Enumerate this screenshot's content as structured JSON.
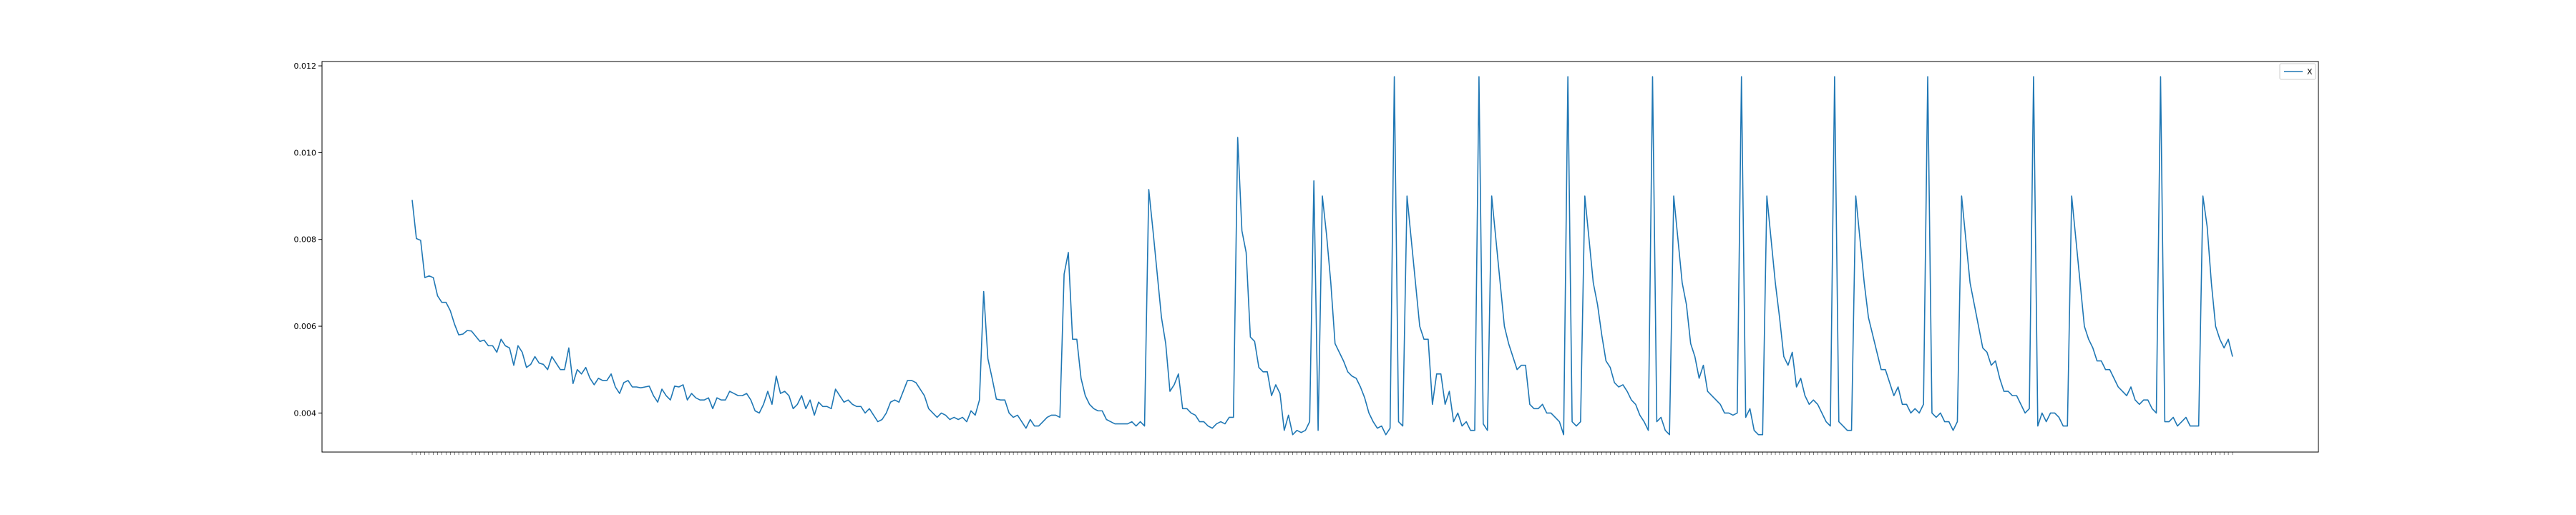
{
  "chart_data": {
    "type": "line",
    "title": "",
    "xlabel": "",
    "ylabel": "",
    "ylim": [
      0.0031,
      0.0121
    ],
    "y_ticks": [
      0.004,
      0.006,
      0.008,
      0.01,
      0.012
    ],
    "y_tick_labels": [
      "0.004",
      "0.006",
      "0.008",
      "0.010",
      "0.012"
    ],
    "grid": false,
    "legend_position": "top-right",
    "series": [
      {
        "name": "X",
        "color": "#1f77b4",
        "values": [
          0.00891,
          0.00802,
          0.00798,
          0.00712,
          0.00716,
          0.00712,
          0.0067,
          0.00655,
          0.00655,
          0.00636,
          0.00605,
          0.0058,
          0.00582,
          0.0059,
          0.00589,
          0.00577,
          0.00565,
          0.00568,
          0.00555,
          0.00555,
          0.0054,
          0.0057,
          0.00555,
          0.0055,
          0.0051,
          0.00555,
          0.0054,
          0.00505,
          0.00512,
          0.0053,
          0.00515,
          0.00512,
          0.005,
          0.0053,
          0.00515,
          0.005,
          0.005,
          0.0055,
          0.00468,
          0.005,
          0.0049,
          0.00505,
          0.0048,
          0.00465,
          0.0048,
          0.00475,
          0.00475,
          0.0049,
          0.0046,
          0.00445,
          0.0047,
          0.00475,
          0.0046,
          0.0046,
          0.00458,
          0.0046,
          0.00462,
          0.0044,
          0.00425,
          0.00455,
          0.0044,
          0.0043,
          0.00462,
          0.0046,
          0.00465,
          0.0043,
          0.00445,
          0.00435,
          0.0043,
          0.0043,
          0.00435,
          0.0041,
          0.00435,
          0.0043,
          0.0043,
          0.0045,
          0.00445,
          0.0044,
          0.0044,
          0.00445,
          0.0043,
          0.00405,
          0.004,
          0.0042,
          0.0045,
          0.0042,
          0.00485,
          0.00445,
          0.0045,
          0.0044,
          0.0041,
          0.0042,
          0.0044,
          0.0041,
          0.0043,
          0.00395,
          0.00425,
          0.00415,
          0.00415,
          0.0041,
          0.00455,
          0.0044,
          0.00425,
          0.0043,
          0.0042,
          0.00415,
          0.00415,
          0.004,
          0.0041,
          0.00395,
          0.0038,
          0.00385,
          0.004,
          0.00425,
          0.0043,
          0.00425,
          0.0045,
          0.00475,
          0.00475,
          0.0047,
          0.00455,
          0.0044,
          0.0041,
          0.004,
          0.0039,
          0.004,
          0.00395,
          0.00385,
          0.0039,
          0.00385,
          0.0039,
          0.0038,
          0.00405,
          0.00395,
          0.0043,
          0.0068,
          0.00525,
          0.0048,
          0.00432,
          0.0043,
          0.0043,
          0.004,
          0.0039,
          0.00395,
          0.0038,
          0.00365,
          0.00385,
          0.0037,
          0.0037,
          0.0038,
          0.0039,
          0.00395,
          0.00395,
          0.0039,
          0.0072,
          0.0077,
          0.0057,
          0.0057,
          0.0048,
          0.0044,
          0.0042,
          0.0041,
          0.00405,
          0.00405,
          0.00385,
          0.0038,
          0.00375,
          0.00375,
          0.00375,
          0.00375,
          0.0038,
          0.0037,
          0.0038,
          0.0037,
          0.00915,
          0.0082,
          0.0072,
          0.0062,
          0.0056,
          0.0045,
          0.00465,
          0.0049,
          0.0041,
          0.0041,
          0.004,
          0.00395,
          0.0038,
          0.0038,
          0.0037,
          0.00365,
          0.00375,
          0.0038,
          0.00375,
          0.0039,
          0.0039,
          0.01035,
          0.0082,
          0.0077,
          0.00575,
          0.00565,
          0.00505,
          0.00495,
          0.00495,
          0.0044,
          0.00465,
          0.00445,
          0.0036,
          0.00395,
          0.0035,
          0.0036,
          0.00355,
          0.0036,
          0.0038,
          0.00935,
          0.0036,
          0.009,
          0.0081,
          0.007,
          0.0056,
          0.0054,
          0.0052,
          0.00495,
          0.00485,
          0.0048,
          0.0046,
          0.00435,
          0.004,
          0.0038,
          0.00365,
          0.0037,
          0.0035,
          0.00365,
          0.01175,
          0.0038,
          0.0037,
          0.009,
          0.008,
          0.007,
          0.006,
          0.0057,
          0.0057,
          0.0042,
          0.0049,
          0.0049,
          0.0042,
          0.0045,
          0.0038,
          0.004,
          0.0037,
          0.0038,
          0.0036,
          0.0036,
          0.01175,
          0.00375,
          0.0036,
          0.009,
          0.008,
          0.007,
          0.006,
          0.0056,
          0.0053,
          0.005,
          0.0051,
          0.0051,
          0.0042,
          0.0041,
          0.0041,
          0.0042,
          0.004,
          0.004,
          0.0039,
          0.0038,
          0.0035,
          0.01175,
          0.0038,
          0.0037,
          0.0038,
          0.009,
          0.008,
          0.007,
          0.0065,
          0.0058,
          0.0052,
          0.00505,
          0.0047,
          0.0046,
          0.00465,
          0.0045,
          0.0043,
          0.0042,
          0.00395,
          0.0038,
          0.0036,
          0.01175,
          0.0038,
          0.0039,
          0.0036,
          0.0035,
          0.009,
          0.008,
          0.007,
          0.0065,
          0.0056,
          0.0053,
          0.0048,
          0.0051,
          0.0045,
          0.0044,
          0.0043,
          0.0042,
          0.004,
          0.004,
          0.00395,
          0.004,
          0.01175,
          0.0039,
          0.0041,
          0.0036,
          0.0035,
          0.0035,
          0.009,
          0.008,
          0.007,
          0.0062,
          0.0053,
          0.0051,
          0.0054,
          0.0046,
          0.0048,
          0.0044,
          0.0042,
          0.0043,
          0.0042,
          0.004,
          0.0038,
          0.0037,
          0.01175,
          0.0038,
          0.0037,
          0.0036,
          0.0036,
          0.009,
          0.008,
          0.007,
          0.0062,
          0.0058,
          0.0054,
          0.005,
          0.005,
          0.0047,
          0.0044,
          0.0046,
          0.0042,
          0.0042,
          0.004,
          0.0041,
          0.004,
          0.0042,
          0.01175,
          0.004,
          0.0039,
          0.004,
          0.0038,
          0.0038,
          0.0036,
          0.0038,
          0.009,
          0.008,
          0.007,
          0.0065,
          0.006,
          0.0055,
          0.0054,
          0.0051,
          0.0052,
          0.0048,
          0.0045,
          0.0045,
          0.0044,
          0.0044,
          0.0042,
          0.004,
          0.0041,
          0.01175,
          0.0037,
          0.004,
          0.0038,
          0.004,
          0.004,
          0.0039,
          0.0037,
          0.0037,
          0.009,
          0.008,
          0.007,
          0.006,
          0.0057,
          0.0055,
          0.0052,
          0.0052,
          0.005,
          0.005,
          0.0048,
          0.0046,
          0.0045,
          0.0044,
          0.0046,
          0.0043,
          0.0042,
          0.0043,
          0.0043,
          0.0041,
          0.004,
          0.01175,
          0.0038,
          0.0038,
          0.0039,
          0.0037,
          0.0038,
          0.0039,
          0.0037,
          0.0037,
          0.0037,
          0.009,
          0.0083,
          0.007,
          0.006,
          0.0057,
          0.0055,
          0.0057,
          0.0053
        ]
      }
    ]
  }
}
